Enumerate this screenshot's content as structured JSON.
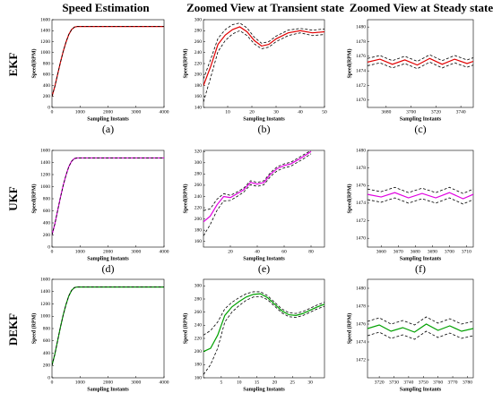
{
  "column_titles": [
    "Speed Estimation",
    "Zoomed View at Transient state",
    "Zoomed View at Steady state"
  ],
  "row_labels": [
    "EKF",
    "UKF",
    "DEKF"
  ],
  "chart_data": [
    {
      "type": "line",
      "caption": "(a)",
      "x_label": "Sampling Instants",
      "y_label": "Speed(RPM)",
      "xlim": [
        0,
        4000
      ],
      "xticks": [
        0,
        1000,
        2000,
        3000,
        4000
      ],
      "ylim": [
        0,
        1600
      ],
      "yticks": [
        0,
        200,
        400,
        600,
        800,
        1000,
        1200,
        1400,
        1600
      ],
      "x": [
        0,
        100,
        200,
        300,
        400,
        500,
        600,
        700,
        800,
        900,
        1000,
        2000,
        3000,
        4000
      ],
      "series": [
        {
          "color": "#e00000",
          "dashed": false,
          "values": [
            200,
            380,
            600,
            820,
            1020,
            1190,
            1330,
            1420,
            1465,
            1475,
            1475,
            1475,
            1475,
            1475
          ]
        },
        {
          "color": "#000000",
          "dashed": true,
          "values": [
            200,
            380,
            600,
            820,
            1020,
            1190,
            1330,
            1420,
            1465,
            1475,
            1475,
            1475,
            1475,
            1475
          ]
        }
      ]
    },
    {
      "type": "line",
      "caption": "(b)",
      "x_label": "Sampling Instants",
      "y_label": "Speed(RPM)",
      "xlim": [
        0,
        50
      ],
      "xticks": [
        10,
        20,
        30,
        40,
        50
      ],
      "ylim": [
        140,
        300
      ],
      "yticks": [
        140,
        160,
        180,
        200,
        220,
        240,
        260,
        280,
        300
      ],
      "x": [
        0,
        3,
        6,
        9,
        12,
        15,
        18,
        21,
        24,
        27,
        30,
        35,
        40,
        45,
        50
      ],
      "series": [
        {
          "color": "#000000",
          "dashed": true,
          "values": [
            192,
            228,
            266,
            282,
            291,
            294,
            285,
            268,
            257,
            260,
            270,
            281,
            284,
            281,
            283
          ]
        },
        {
          "color": "#e00000",
          "dashed": false,
          "values": [
            180,
            215,
            255,
            272,
            282,
            287,
            278,
            262,
            252,
            255,
            265,
            276,
            280,
            276,
            278
          ]
        },
        {
          "color": "#000000",
          "dashed": true,
          "values": [
            150,
            195,
            242,
            262,
            274,
            280,
            271,
            256,
            247,
            250,
            260,
            271,
            276,
            271,
            273
          ]
        }
      ]
    },
    {
      "type": "line",
      "caption": "(c)",
      "x_label": "Sampling Instants",
      "y_label": "Speed(RPM)",
      "xlim": [
        3665,
        3750
      ],
      "xticks": [
        3680,
        3700,
        3720,
        3740
      ],
      "ylim": [
        1469,
        1481
      ],
      "yticks": [
        1470,
        1472,
        1474,
        1476,
        1478,
        1480
      ],
      "x": [
        3665,
        3675,
        3685,
        3695,
        3705,
        3715,
        3725,
        3735,
        3745,
        3750
      ],
      "series": [
        {
          "color": "#000000",
          "dashed": true,
          "values": [
            1475.7,
            1476.1,
            1475.4,
            1476.0,
            1475.3,
            1476.2,
            1475.4,
            1476.1,
            1475.5,
            1475.8
          ]
        },
        {
          "color": "#e00000",
          "dashed": false,
          "values": [
            1475.2,
            1475.6,
            1474.9,
            1475.5,
            1474.8,
            1475.7,
            1474.9,
            1475.6,
            1475.0,
            1475.3
          ]
        },
        {
          "color": "#000000",
          "dashed": true,
          "values": [
            1474.7,
            1475.1,
            1474.4,
            1475.0,
            1474.3,
            1475.2,
            1474.4,
            1475.1,
            1474.5,
            1474.8
          ]
        }
      ]
    },
    {
      "type": "line",
      "caption": "(d)",
      "x_label": "Sampling Instants",
      "y_label": "Speed(RPM)",
      "xlim": [
        0,
        4000
      ],
      "xticks": [
        0,
        1000,
        2000,
        3000,
        4000
      ],
      "ylim": [
        0,
        1600
      ],
      "yticks": [
        0,
        200,
        400,
        600,
        800,
        1000,
        1200,
        1400,
        1600
      ],
      "x": [
        0,
        100,
        200,
        300,
        400,
        500,
        600,
        700,
        800,
        900,
        1000,
        2000,
        3000,
        4000
      ],
      "series": [
        {
          "color": "#e000e0",
          "dashed": false,
          "values": [
            200,
            380,
            600,
            820,
            1020,
            1190,
            1330,
            1420,
            1465,
            1475,
            1475,
            1475,
            1475,
            1475
          ]
        },
        {
          "color": "#000000",
          "dashed": true,
          "values": [
            200,
            380,
            600,
            820,
            1020,
            1190,
            1330,
            1420,
            1465,
            1475,
            1475,
            1475,
            1475,
            1475
          ]
        }
      ]
    },
    {
      "type": "line",
      "caption": "(e)",
      "x_label": "Sampling Instants",
      "y_label": "Speed(RPM)",
      "xlim": [
        0,
        90
      ],
      "xticks": [
        20,
        40,
        60,
        80
      ],
      "ylim": [
        150,
        322
      ],
      "yticks": [
        160,
        180,
        200,
        220,
        240,
        260,
        280,
        300,
        320
      ],
      "x": [
        0,
        5,
        10,
        15,
        20,
        25,
        30,
        35,
        40,
        45,
        50,
        55,
        60,
        65,
        70,
        75,
        80
      ],
      "series": [
        {
          "color": "#000000",
          "dashed": true,
          "values": [
            215,
            218,
            235,
            245,
            242,
            248,
            255,
            268,
            265,
            268,
            283,
            293,
            298,
            301,
            308,
            315,
            322
          ]
        },
        {
          "color": "#e000e0",
          "dashed": false,
          "values": [
            195,
            205,
            225,
            240,
            238,
            245,
            252,
            265,
            262,
            265,
            280,
            290,
            295,
            298,
            305,
            312,
            320
          ]
        },
        {
          "color": "#000000",
          "dashed": true,
          "values": [
            170,
            190,
            215,
            232,
            233,
            240,
            248,
            261,
            258,
            261,
            276,
            286,
            291,
            294,
            301,
            308,
            316
          ]
        }
      ]
    },
    {
      "type": "line",
      "caption": "(f)",
      "x_label": "Sampling Instants",
      "y_label": "Speed(RPM)",
      "xlim": [
        3652,
        3714
      ],
      "xticks": [
        3660,
        3670,
        3680,
        3690,
        3700,
        3710
      ],
      "ylim": [
        1469,
        1480
      ],
      "yticks": [
        1470,
        1472,
        1474,
        1476,
        1478,
        1480
      ],
      "x": [
        3652,
        3660,
        3668,
        3676,
        3684,
        3692,
        3700,
        3708,
        3714
      ],
      "series": [
        {
          "color": "#000000",
          "dashed": true,
          "values": [
            1475.6,
            1475.3,
            1475.8,
            1475.2,
            1475.7,
            1475.2,
            1475.8,
            1475.1,
            1475.6
          ]
        },
        {
          "color": "#e000e0",
          "dashed": false,
          "values": [
            1475.0,
            1474.7,
            1475.2,
            1474.6,
            1475.1,
            1474.6,
            1475.2,
            1474.5,
            1475.0
          ]
        },
        {
          "color": "#000000",
          "dashed": true,
          "values": [
            1474.4,
            1474.1,
            1474.6,
            1474.0,
            1474.5,
            1474.0,
            1474.6,
            1473.9,
            1474.4
          ]
        }
      ]
    },
    {
      "type": "line",
      "caption": "(g)",
      "x_label": "Sampling Instants",
      "y_label": "Speed (RPM)",
      "xlim": [
        0,
        4000
      ],
      "xticks": [
        0,
        1000,
        2000,
        3000,
        4000
      ],
      "ylim": [
        0,
        1600
      ],
      "yticks": [
        0,
        200,
        400,
        600,
        800,
        1000,
        1200,
        1400,
        1600
      ],
      "x": [
        0,
        100,
        200,
        300,
        400,
        500,
        600,
        700,
        800,
        900,
        1000,
        2000,
        3000,
        4000
      ],
      "series": [
        {
          "color": "#00a000",
          "dashed": false,
          "values": [
            200,
            380,
            600,
            820,
            1020,
            1190,
            1330,
            1420,
            1465,
            1475,
            1475,
            1475,
            1475,
            1475
          ]
        },
        {
          "color": "#000000",
          "dashed": true,
          "values": [
            200,
            380,
            600,
            820,
            1020,
            1190,
            1330,
            1420,
            1465,
            1475,
            1475,
            1475,
            1475,
            1475
          ]
        }
      ]
    },
    {
      "type": "line",
      "caption": "(h)",
      "x_label": "Sampling Instants",
      "y_label": "Speed (RPM)",
      "xlim": [
        0,
        34
      ],
      "xticks": [
        5,
        10,
        15,
        20,
        25,
        30
      ],
      "ylim": [
        160,
        310
      ],
      "yticks": [
        160,
        180,
        200,
        220,
        240,
        260,
        280,
        300
      ],
      "x": [
        0,
        2,
        4,
        6,
        8,
        10,
        12,
        14,
        16,
        18,
        20,
        22,
        24,
        26,
        28,
        30,
        32,
        34
      ],
      "series": [
        {
          "color": "#000000",
          "dashed": true,
          "values": [
            225,
            232,
            245,
            265,
            275,
            282,
            288,
            291,
            291,
            285,
            275,
            265,
            259,
            258,
            261,
            266,
            271,
            275
          ]
        },
        {
          "color": "#00a000",
          "dashed": false,
          "values": [
            200,
            205,
            225,
            255,
            268,
            276,
            283,
            287,
            288,
            282,
            272,
            262,
            256,
            255,
            258,
            263,
            268,
            272
          ]
        },
        {
          "color": "#000000",
          "dashed": true,
          "values": [
            165,
            180,
            205,
            245,
            260,
            270,
            278,
            283,
            284,
            279,
            269,
            259,
            253,
            252,
            255,
            260,
            265,
            269
          ]
        }
      ]
    },
    {
      "type": "line",
      "caption": "(i)",
      "x_label": "Sampling Instants",
      "y_label": "Speed (RPM)",
      "xlim": [
        3712,
        3784
      ],
      "xticks": [
        3720,
        3730,
        3740,
        3750,
        3760,
        3770,
        3780
      ],
      "ylim": [
        1470,
        1481
      ],
      "yticks": [
        1472,
        1474,
        1476,
        1478,
        1480
      ],
      "x": [
        3712,
        3720,
        3728,
        3736,
        3744,
        3752,
        3760,
        3768,
        3776,
        3784
      ],
      "series": [
        {
          "color": "#000000",
          "dashed": true,
          "values": [
            1476.3,
            1476.7,
            1476.0,
            1476.4,
            1475.9,
            1476.8,
            1476.1,
            1476.6,
            1476.0,
            1476.3
          ]
        },
        {
          "color": "#00a000",
          "dashed": false,
          "values": [
            1475.5,
            1475.9,
            1475.2,
            1475.6,
            1475.1,
            1476.0,
            1475.3,
            1475.8,
            1475.2,
            1475.5
          ]
        },
        {
          "color": "#000000",
          "dashed": true,
          "values": [
            1474.7,
            1475.1,
            1474.4,
            1474.8,
            1474.3,
            1475.2,
            1474.5,
            1475.0,
            1474.4,
            1474.7
          ]
        }
      ]
    }
  ]
}
